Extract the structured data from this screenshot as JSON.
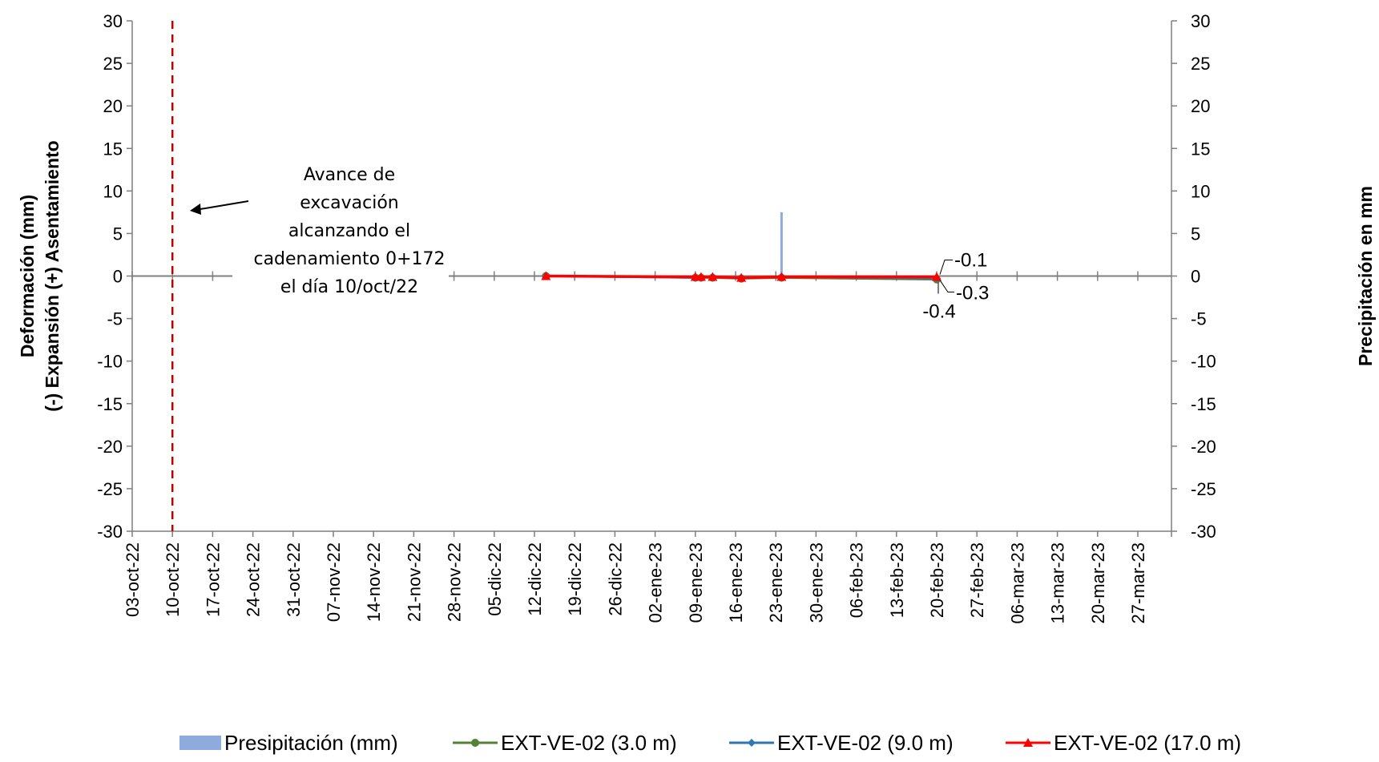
{
  "chart_data": {
    "type": "line",
    "title": "",
    "ylabel": {
      "line1": "Deformación (mm)",
      "line2": "(-) Expansión     (+)  Asentamiento"
    },
    "y2label": "Precipitación en mm",
    "ylim": [
      -30,
      30
    ],
    "y_ticks": [
      "30",
      "25",
      "20",
      "15",
      "10",
      "5",
      "0",
      "-5",
      "-10",
      "-15",
      "-20",
      "-25",
      "-30"
    ],
    "y2lim": [
      -30,
      30
    ],
    "y2_ticks": [
      "30",
      "25",
      "20",
      "15",
      "10",
      "5",
      "0",
      "-5",
      "-10",
      "-15",
      "-20",
      "-25",
      "-30"
    ],
    "xlim": [
      "2022-10-03",
      "2023-03-31"
    ],
    "x_ticks": [
      "03-oct-22",
      "10-oct-22",
      "17-oct-22",
      "24-oct-22",
      "31-oct-22",
      "07-nov-22",
      "14-nov-22",
      "21-nov-22",
      "28-nov-22",
      "05-dic-22",
      "12-dic-22",
      "19-dic-22",
      "26-dic-22",
      "02-ene-23",
      "09-ene-23",
      "16-ene-23",
      "23-ene-23",
      "30-ene-23",
      "06-feb-23",
      "13-feb-23",
      "20-feb-23",
      "27-feb-23",
      "06-mar-23",
      "13-mar-23",
      "20-mar-23",
      "27-mar-23"
    ],
    "grid": false,
    "legend_position": "bottom",
    "excavation_date": "2022-10-10",
    "annotation": [
      "Avance de",
      "excavación",
      "alcanzando el",
      "cadenamiento 0+172",
      "el día 10/oct/22"
    ],
    "precipitation": {
      "name": "Presipitación (mm)",
      "color": "#8faadc",
      "x": [
        "2023-01-24"
      ],
      "values": [
        7.5
      ]
    },
    "series": [
      {
        "name": "EXT-VE-02 (3.0 m)",
        "color": "#538135",
        "marker": "circle",
        "x": [
          "2022-12-14",
          "2023-01-09",
          "2023-01-10",
          "2023-01-12",
          "2023-01-17",
          "2023-01-24",
          "2023-02-20"
        ],
        "values": [
          0.0,
          -0.2,
          -0.2,
          -0.2,
          -0.3,
          -0.2,
          -0.4
        ]
      },
      {
        "name": "EXT-VE-02 (9.0 m)",
        "color": "#2e75b6",
        "marker": "diamond",
        "x": [
          "2022-12-14",
          "2023-01-09",
          "2023-01-10",
          "2023-01-12",
          "2023-01-17",
          "2023-01-24",
          "2023-02-20"
        ],
        "values": [
          0.0,
          -0.2,
          -0.2,
          -0.1,
          -0.2,
          -0.1,
          -0.3
        ]
      },
      {
        "name": "EXT-VE-02 (17.0 m)",
        "color": "#ff0000",
        "marker": "triangle",
        "x": [
          "2022-12-14",
          "2023-01-09",
          "2023-01-10",
          "2023-01-12",
          "2023-01-17",
          "2023-01-24",
          "2023-02-20"
        ],
        "values": [
          0.0,
          -0.1,
          -0.1,
          -0.1,
          -0.2,
          -0.1,
          -0.1
        ]
      }
    ],
    "data_labels": [
      "-0.1",
      "-0.3",
      "-0.4"
    ]
  }
}
